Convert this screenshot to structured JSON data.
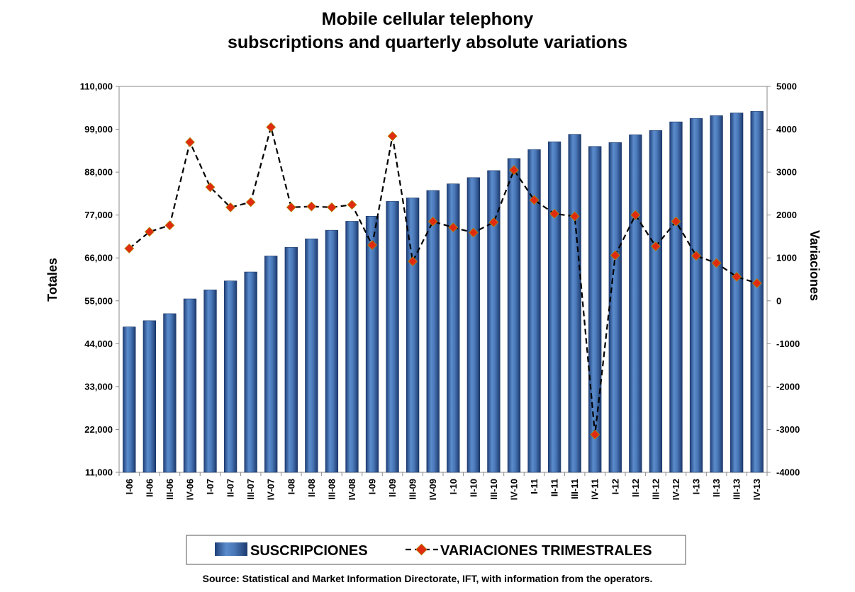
{
  "chart_data": {
    "type": "bar",
    "title": [
      "Mobile cellular telephony",
      "subscriptions and quarterly absolute variations"
    ],
    "ylabel": "Totales",
    "y2label": "Variaciones",
    "ylim": [
      11000,
      110000
    ],
    "y2lim": [
      -4000,
      5000
    ],
    "yticks": [
      "110,000",
      "99,000",
      "88,000",
      "77,000",
      "66,000",
      "55,000",
      "44,000",
      "33,000",
      "22,000",
      "11,000"
    ],
    "y2ticks": [
      "5000",
      "4000",
      "3000",
      "2000",
      "1000",
      "0",
      "-1000",
      "-2000",
      "-3000",
      "-4000"
    ],
    "categories": [
      "I-06",
      "II-06",
      "III-06",
      "IV-06",
      "I-07",
      "II-07",
      "III-07",
      "IV-07",
      "I-08",
      "II-08",
      "III-08",
      "IV-08",
      "I-09",
      "II-09",
      "III-09",
      "IV-09",
      "I-10",
      "II-10",
      "III-10",
      "IV-10",
      "I-11",
      "II-11",
      "III-11",
      "IV-11",
      "I-12",
      "II-12",
      "III-12",
      "IV-12",
      "I-13",
      "II-13",
      "III-13",
      "IV-13"
    ],
    "series": [
      {
        "name": "SUSCRIPCIONES",
        "type": "bar",
        "axis": "left",
        "color": "#4a76b4",
        "values": [
          48300,
          49900,
          51700,
          55500,
          57800,
          60100,
          62400,
          66500,
          68700,
          70900,
          73100,
          75400,
          76700,
          80500,
          81400,
          83300,
          85000,
          86600,
          88400,
          91500,
          93800,
          95800,
          97700,
          94600,
          95600,
          97600,
          98700,
          100900,
          101800,
          102500,
          103200,
          103600
        ]
      },
      {
        "name": "VARIACIONES TRIMESTRALES",
        "type": "line",
        "axis": "right",
        "line_color": "#000000",
        "marker_color": "#e02b10",
        "values": [
          1220,
          1610,
          1760,
          3700,
          2650,
          2180,
          2300,
          4050,
          2180,
          2200,
          2180,
          2240,
          1300,
          3840,
          920,
          1850,
          1710,
          1590,
          1830,
          3050,
          2350,
          2030,
          1970,
          -3120,
          1060,
          2000,
          1270,
          1850,
          1050,
          880,
          560,
          410
        ]
      }
    ],
    "legend": "bottom",
    "grid": false,
    "source": "Source: Statistical and Market Information Directorate, IFT, with information from the operators."
  }
}
